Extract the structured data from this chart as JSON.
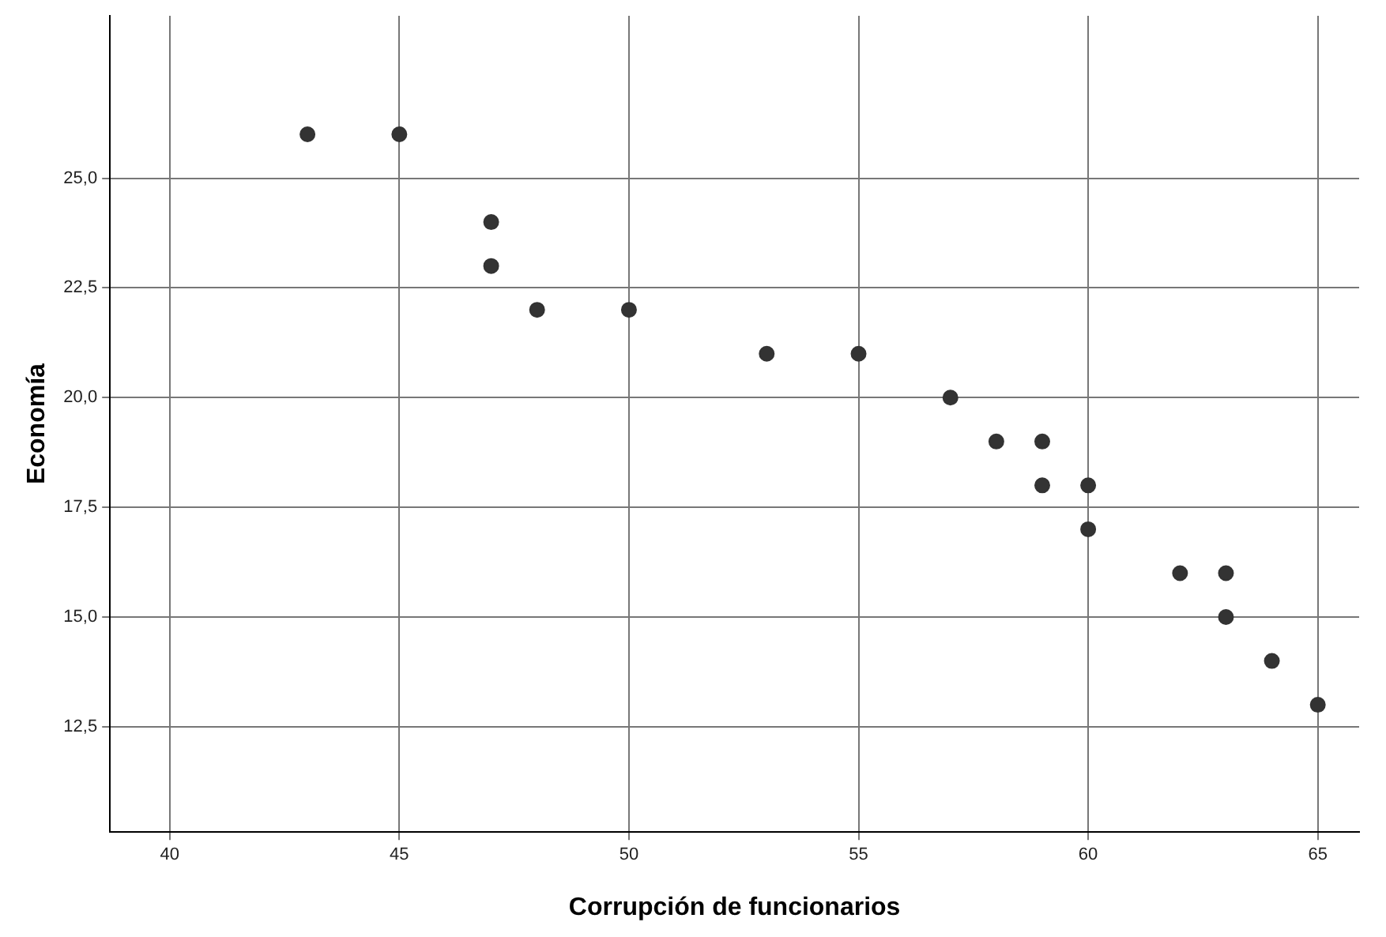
{
  "chart_data": {
    "type": "scatter",
    "xlabel": "Corrupción de funcionarios",
    "ylabel": "Economía",
    "x": [
      43,
      45,
      47,
      47,
      48,
      50,
      53,
      55,
      57,
      58,
      59,
      59,
      60,
      60,
      62,
      63,
      63,
      64,
      65
    ],
    "series": [
      {
        "color": "#333333",
        "values": [
          26,
          26,
          24,
          23,
          22,
          22,
          21,
          21,
          20,
          19,
          19,
          18,
          18,
          17,
          16,
          16,
          15,
          14,
          13
        ]
      }
    ],
    "xlim": [
      38.7,
      65.9
    ],
    "xticks": [
      40,
      45,
      50,
      55,
      60,
      65
    ],
    "ylim": [
      10.1,
      28.7
    ],
    "yticks": [
      {
        "value": 12.5,
        "label": "12,5"
      },
      {
        "value": 15,
        "label": "15,0"
      },
      {
        "value": 17.5,
        "label": "17,5"
      },
      {
        "value": 20,
        "label": "20,0"
      },
      {
        "value": 22.5,
        "label": "22,5"
      },
      {
        "value": 25,
        "label": "25,0"
      }
    ],
    "grid": true,
    "marker": "circle",
    "legend": false
  }
}
